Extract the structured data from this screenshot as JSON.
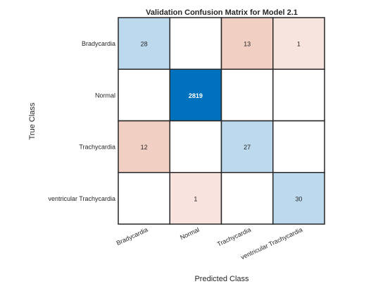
{
  "chart_data": {
    "type": "heatmap",
    "title": "Validation Confusion Matrix for Model 2.1",
    "xlabel": "Predicted Class",
    "ylabel": "True Class",
    "row_labels": [
      "Bradycardia",
      "Normal",
      "Trachycardia",
      "ventricular Trachycardia"
    ],
    "col_labels": [
      "Bradycardia",
      "Normal",
      "Trachycardia",
      "ventricular Trachycardia"
    ],
    "matrix": [
      [
        28,
        null,
        13,
        1
      ],
      [
        null,
        2819,
        null,
        null
      ],
      [
        12,
        null,
        27,
        null
      ],
      [
        null,
        1,
        null,
        30
      ]
    ],
    "colors": {
      "diagonal_scale_low": "#e8f1f9",
      "diagonal_scale_high": "#0072bd",
      "off_diagonal_low": "#f9e6e1",
      "off_diagonal_high": "#f2cfc3",
      "cell_border": "#262626",
      "text_dark": "#262626",
      "text_light": "#ffffff"
    }
  }
}
